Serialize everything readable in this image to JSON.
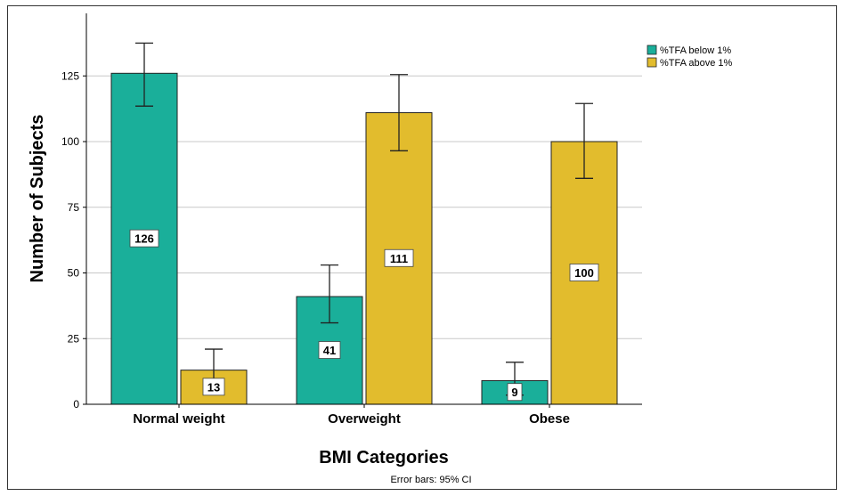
{
  "chart_data": {
    "type": "bar",
    "title": "",
    "xlabel": "BMI Categories",
    "ylabel": "Number of Subjects",
    "categories": [
      "Normal weight",
      "Overweight",
      "Obese"
    ],
    "series": [
      {
        "name": "%TFA below 1%",
        "color": "#1aaf9a",
        "values": [
          126,
          41,
          9
        ],
        "ci_low": [
          113.5,
          31,
          3.5
        ],
        "ci_high": [
          137.5,
          53,
          16
        ]
      },
      {
        "name": "%TFA above 1%",
        "color": "#e2bc2d",
        "values": [
          13,
          111,
          100
        ],
        "ci_low": [
          6,
          96.5,
          86
        ],
        "ci_high": [
          21,
          125.5,
          114.5
        ]
      }
    ],
    "ylim": [
      0,
      140
    ],
    "yticks": [
      0,
      25,
      50,
      75,
      100,
      125
    ],
    "grid": true,
    "legend_position": "top-right",
    "footnote": "Error bars: 95% CI"
  }
}
